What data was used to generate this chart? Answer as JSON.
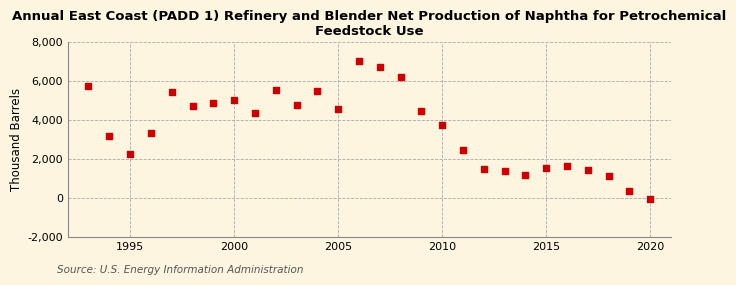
{
  "title": "Annual East Coast (PADD 1) Refinery and Blender Net Production of Naphtha for Petrochemical\nFeedstock Use",
  "ylabel": "Thousand Barrels",
  "source": "Source: U.S. Energy Information Administration",
  "years": [
    1993,
    1994,
    1995,
    1996,
    1997,
    1998,
    1999,
    2000,
    2001,
    2002,
    2003,
    2004,
    2005,
    2006,
    2007,
    2008,
    2009,
    2010,
    2011,
    2012,
    2013,
    2014,
    2015,
    2016,
    2017,
    2018,
    2019,
    2020
  ],
  "values": [
    5750,
    3150,
    2250,
    3300,
    5400,
    4700,
    4850,
    5000,
    4350,
    5500,
    4750,
    5450,
    4550,
    7000,
    6700,
    6200,
    4450,
    3750,
    2450,
    1450,
    1350,
    1150,
    1500,
    1600,
    1400,
    1100,
    350,
    -50
  ],
  "marker_color": "#cc0000",
  "marker_size": 5,
  "background_color": "#fdf5e0",
  "grid_color": "#aaaaaa",
  "ylim": [
    -2000,
    8000
  ],
  "xlim": [
    1992,
    2021
  ],
  "yticks": [
    -2000,
    0,
    2000,
    4000,
    6000,
    8000
  ],
  "xticks": [
    1995,
    2000,
    2005,
    2010,
    2015,
    2020
  ],
  "title_fontsize": 9.5,
  "ylabel_fontsize": 8.5,
  "tick_fontsize": 8,
  "source_fontsize": 7.5
}
